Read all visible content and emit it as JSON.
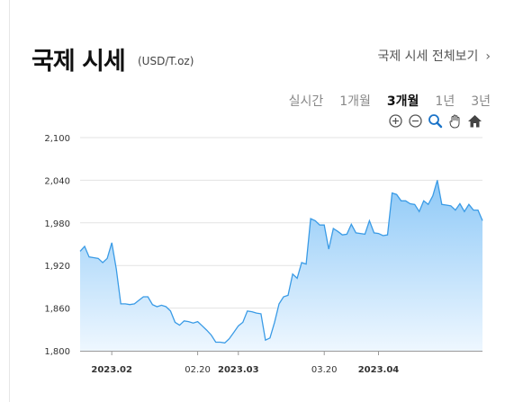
{
  "header": {
    "title": "국제 시세",
    "unit": "(USD/T.oz)",
    "more_label": "국제 시세 전체보기",
    "more_chevron": "›"
  },
  "tabs": [
    {
      "label": "실시간",
      "active": false
    },
    {
      "label": "1개월",
      "active": false
    },
    {
      "label": "3개월",
      "active": true
    },
    {
      "label": "1년",
      "active": false
    },
    {
      "label": "3년",
      "active": false
    }
  ],
  "tools": [
    "zoom-in-icon",
    "zoom-out-icon",
    "magnifier-icon",
    "pan-hand-icon",
    "home-icon"
  ],
  "colors": {
    "line": "#3a9be6",
    "fill_top": "#8ec9f7",
    "fill_bottom": "#eef7ff",
    "grid": "#e3e3e3"
  },
  "chart_data": {
    "type": "area",
    "ylim": [
      1800,
      2100
    ],
    "yticks": [
      "1,800",
      "1,860",
      "1,920",
      "1,980",
      "2,040",
      "2,100"
    ],
    "ytick_values": [
      1800,
      1860,
      1920,
      1980,
      2040,
      2100
    ],
    "xlim": [
      "2023-01-25",
      "2023-04-24"
    ],
    "xticks": [
      {
        "date": "2023-02-01",
        "label": "2023.02",
        "major": true
      },
      {
        "date": "2023-02-20",
        "label": "02.20",
        "major": false
      },
      {
        "date": "2023-03-01",
        "label": "2023.03",
        "major": true
      },
      {
        "date": "2023-03-20",
        "label": "03.20",
        "major": false
      },
      {
        "date": "2023-04-01",
        "label": "2023.04",
        "major": true
      }
    ],
    "series": [
      {
        "x": [
          "2023-01-25",
          "2023-01-26",
          "2023-01-27",
          "2023-01-28",
          "2023-01-29",
          "2023-01-30",
          "2023-01-31",
          "2023-02-01",
          "2023-02-02",
          "2023-02-03",
          "2023-02-04",
          "2023-02-05",
          "2023-02-06",
          "2023-02-07",
          "2023-02-08",
          "2023-02-09",
          "2023-02-10",
          "2023-02-11",
          "2023-02-12",
          "2023-02-13",
          "2023-02-14",
          "2023-02-15",
          "2023-02-16",
          "2023-02-17",
          "2023-02-18",
          "2023-02-19",
          "2023-02-20",
          "2023-02-21",
          "2023-02-22",
          "2023-02-23",
          "2023-02-24",
          "2023-02-25",
          "2023-02-26",
          "2023-02-27",
          "2023-02-28",
          "2023-03-01",
          "2023-03-02",
          "2023-03-03",
          "2023-03-04",
          "2023-03-05",
          "2023-03-06",
          "2023-03-07",
          "2023-03-08",
          "2023-03-09",
          "2023-03-10",
          "2023-03-11",
          "2023-03-12",
          "2023-03-13",
          "2023-03-14",
          "2023-03-15",
          "2023-03-16",
          "2023-03-17",
          "2023-03-18",
          "2023-03-19",
          "2023-03-20",
          "2023-03-21",
          "2023-03-22",
          "2023-03-23",
          "2023-03-24",
          "2023-03-25",
          "2023-03-26",
          "2023-03-27",
          "2023-03-28",
          "2023-03-29",
          "2023-03-30",
          "2023-03-31",
          "2023-04-01",
          "2023-04-02",
          "2023-04-03",
          "2023-04-04",
          "2023-04-05",
          "2023-04-06",
          "2023-04-07",
          "2023-04-08",
          "2023-04-09",
          "2023-04-10",
          "2023-04-11",
          "2023-04-12",
          "2023-04-13",
          "2023-04-14",
          "2023-04-15",
          "2023-04-16",
          "2023-04-17",
          "2023-04-18",
          "2023-04-19",
          "2023-04-20",
          "2023-04-21",
          "2023-04-22",
          "2023-04-23",
          "2023-04-24"
        ],
        "values": [
          1940,
          1947,
          1932,
          1931,
          1930,
          1924,
          1930,
          1952,
          1915,
          1866,
          1866,
          1865,
          1866,
          1871,
          1876,
          1876,
          1865,
          1862,
          1864,
          1862,
          1856,
          1840,
          1836,
          1842,
          1841,
          1839,
          1841,
          1835,
          1829,
          1822,
          1812,
          1812,
          1811,
          1817,
          1826,
          1835,
          1840,
          1856,
          1855,
          1853,
          1852,
          1815,
          1818,
          1840,
          1866,
          1876,
          1878,
          1908,
          1902,
          1924,
          1922,
          1986,
          1983,
          1977,
          1977,
          1943,
          1972,
          1968,
          1963,
          1964,
          1978,
          1966,
          1965,
          1964,
          1983,
          1966,
          1965,
          1962,
          1963,
          2022,
          2020,
          2011,
          2011,
          2007,
          2006,
          1996,
          2011,
          2006,
          2018,
          2040,
          2006,
          2005,
          2004,
          1998,
          2007,
          1996,
          2006,
          1998,
          1998,
          1983
        ]
      }
    ]
  }
}
